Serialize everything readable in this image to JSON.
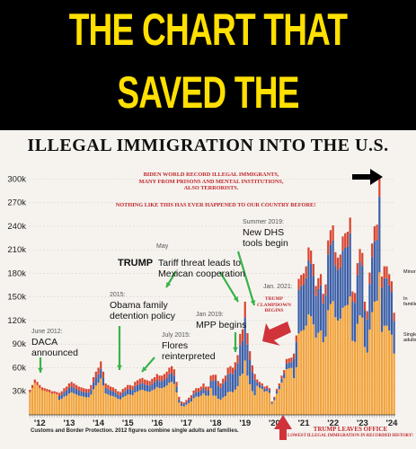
{
  "banner": {
    "line1": "THE CHART  THAT",
    "line2": "SAVED THE COUNTRY"
  },
  "colors": {
    "single_adults": "#f2a33a",
    "families": "#3b5fa8",
    "minors": "#d8452f",
    "red_text": "#c0262b",
    "banner_text": "#ffe000"
  },
  "annotations": {
    "biden": "BIDEN WORLD RECORD ILLEGAL IMMIGRANTS,\nMANY FROM PRISONS AND MENTAL INSTITUTIONS,\nALSO TERRORISTS.",
    "nothing_like": "NOTHING LIKE THIS HAS EVER HAPPENED TO OUR COUNTRY BEFORE!",
    "daca_date": "June 2012:",
    "daca_text": "DACA\nannounced",
    "obama_date": "2015:",
    "obama_text": "Obama family\ndetention policy",
    "flores_date": "July 2015:",
    "flores_text": "Flores\nreinterpreted",
    "may_date": "May",
    "tariff_prefix": "TRUMP",
    "tariff_text": " Tariff threat leads to\nMexican cooperation",
    "mpp_date": "Jan 2019:",
    "mpp_text": "MPP begins",
    "dhs_date": "Summer 2019:",
    "dhs_text": "New DHS\ntools begin",
    "jan2021_date": "Jan. 2021:",
    "clampdown": "TRUMP\nCLAMPDOWN\nBEGINS",
    "minor_label": "Minor",
    "families_label": "In\nfamilies",
    "single_label": "Single\nadults"
  },
  "footer": {
    "source": "Customs and Border Protection. 2012 figures combine single adults and families.",
    "trump_leaves": "TRUMP LEAVES OFFICE",
    "lowest": "LOWEST ILLEGAL IMMIGRATION IN RECORDED HISTORY!"
  },
  "chart_data": {
    "type": "bar",
    "title": "ILLEGAL IMMIGRATION INTO THE U.S.",
    "stacked": true,
    "yticks": [
      "30k",
      "60k",
      "90k",
      "120k",
      "150k",
      "180k",
      "210k",
      "240k",
      "270k",
      "300k"
    ],
    "ylim": [
      0,
      305000
    ],
    "xticks": [
      "'12",
      "'13",
      "'14",
      "'15",
      "'16",
      "'17",
      "'18",
      "'19",
      "'20",
      "'21",
      "'22",
      "'23",
      "'24"
    ],
    "series": [
      {
        "name": "Single adults",
        "color": "#f2a33a"
      },
      {
        "name": "In families",
        "color": "#3b5fa8"
      },
      {
        "name": "Minor",
        "color": "#d8452f"
      }
    ],
    "monthly_totals_by_year": [
      {
        "year": "2012",
        "values": [
          32000,
          38000,
          45000,
          42000,
          38000,
          35000,
          34000,
          33000,
          32000,
          30000,
          30000,
          29000
        ]
      },
      {
        "year": "2013",
        "values": [
          28000,
          30000,
          34000,
          36000,
          40000,
          42000,
          40000,
          38000,
          36000,
          35000,
          34000,
          33000
        ]
      },
      {
        "year": "2014",
        "values": [
          33000,
          38000,
          48000,
          55000,
          60000,
          68000,
          55000,
          40000,
          38000,
          36000,
          35000,
          33000
        ]
      },
      {
        "year": "2015",
        "values": [
          30000,
          29000,
          33000,
          35000,
          38000,
          38000,
          37000,
          42000,
          44000,
          46000,
          47000,
          45000
        ]
      },
      {
        "year": "2016",
        "values": [
          44000,
          43000,
          46000,
          48000,
          52000,
          50000,
          50000,
          52000,
          55000,
          60000,
          62000,
          58000
        ]
      },
      {
        "year": "2017",
        "values": [
          42000,
          23000,
          17000,
          16000,
          19000,
          22000,
          25000,
          31000,
          34000,
          34000,
          36000,
          40000
        ]
      },
      {
        "year": "2018",
        "values": [
          36000,
          36000,
          50000,
          51000,
          51000,
          43000,
          40000,
          46000,
          50000,
          60000,
          62000,
          60000
        ]
      },
      {
        "year": "2019",
        "values": [
          67000,
          76000,
          103000,
          109000,
          144000,
          104000,
          81000,
          63000,
          52000,
          45000,
          42000,
          40000
        ]
      },
      {
        "year": "2020",
        "values": [
          36000,
          37000,
          34000,
          17000,
          23000,
          33000,
          40000,
          50000,
          57000,
          71000,
          72000,
          73000
        ]
      },
      {
        "year": "2021",
        "values": [
          78000,
          101000,
          173000,
          178000,
          180000,
          189000,
          213000,
          209000,
          192000,
          164000,
          174000,
          179000
        ]
      },
      {
        "year": "2022",
        "values": [
          154000,
          166000,
          222000,
          235000,
          241000,
          207000,
          200000,
          204000,
          227000,
          231000,
          233000,
          251000
        ]
      },
      {
        "year": "2023",
        "values": [
          157000,
          155000,
          193000,
          211000,
          206000,
          144000,
          132000,
          181000,
          218000,
          240000,
          242000,
          302000
        ]
      },
      {
        "year": "2024",
        "values": [
          176000,
          189000,
          189000,
          179000,
          170000,
          130000
        ]
      }
    ],
    "side_labels": [
      "Minor",
      "In families",
      "Single adults"
    ]
  }
}
